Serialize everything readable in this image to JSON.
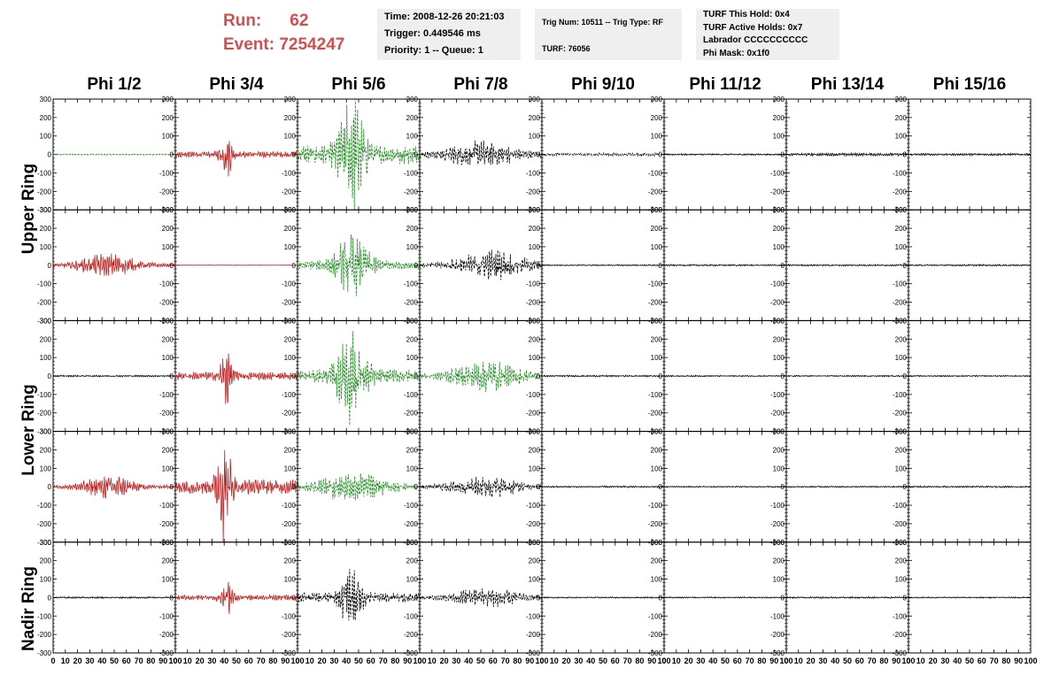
{
  "header": {
    "run_label": "Run:",
    "run_value": "62",
    "event_label": "Event:",
    "event_value": "7254247",
    "time_line": "Time: 2008-12-26 20:21:03",
    "trigger_line": "Trigger: 0.449546 ms",
    "priority_line": "Priority: 1 -- Queue: 1",
    "trig_line": "Trig Num: 10511 -- Trig Type: RF",
    "turf_line": "TURF: 76056",
    "turf_hold_line": "TURF This Hold: 0x4",
    "turf_active_line": "TURF Active Holds: 0x7",
    "labrador_line": "Labrador CCCCCCCCCC",
    "phi_mask_line": "Phi Mask: 0x1f0"
  },
  "columns": [
    "Phi 1/2",
    "Phi 3/4",
    "Phi 5/6",
    "Phi 7/8",
    "Phi 9/10",
    "Phi 11/12",
    "Phi 13/14",
    "Phi 15/16"
  ],
  "rings": [
    "Upper Ring",
    "Lower Ring",
    "Nadir Ring"
  ],
  "colors": {
    "green": "#228b22",
    "red": "#c02020",
    "black": "#000000",
    "run_text": "#d05050",
    "info_bg": "#efefef"
  },
  "chart_data": {
    "type": "line",
    "layout": "grid of 5 rows x 8 columns of waveform panels",
    "xlim": [
      0,
      100
    ],
    "ylim": [
      -300,
      300
    ],
    "x_ticks": [
      0,
      10,
      20,
      30,
      40,
      50,
      60,
      70,
      80,
      90,
      100
    ],
    "x_tick_labels": [
      "0",
      "10",
      "20",
      "30",
      "40",
      "50",
      "60",
      "70",
      "80",
      "90",
      "100"
    ],
    "y_ticks": [
      -300,
      -200,
      -100,
      0,
      100,
      200,
      300
    ],
    "y_tick_labels": [
      "-300",
      "-200",
      "-100",
      "0",
      "100",
      "200",
      "300"
    ],
    "rows": [
      {
        "cells": [
          {
            "color": "green",
            "dashed": true,
            "amp": 12,
            "center": 0,
            "width": 0
          },
          {
            "color": "red",
            "dashed": false,
            "amp": 90,
            "center": 42,
            "width": 5
          },
          {
            "color": "green",
            "dashed": true,
            "amp": 280,
            "center": 44,
            "width": 10
          },
          {
            "color": "black",
            "dashed": true,
            "amp": 55,
            "center": 50,
            "width": 30
          },
          {
            "color": "black",
            "dashed": true,
            "amp": 25,
            "center": 0,
            "width": 0
          },
          {
            "color": "black",
            "dashed": false,
            "amp": 15,
            "center": 0,
            "width": 0
          },
          {
            "color": "black",
            "dashed": false,
            "amp": 25,
            "center": 0,
            "width": 0
          },
          {
            "color": "black",
            "dashed": false,
            "amp": 20,
            "center": 0,
            "width": 0
          }
        ]
      },
      {
        "cells": [
          {
            "color": "red",
            "dashed": false,
            "amp": 45,
            "center": 45,
            "width": 25
          },
          {
            "color": "red",
            "dashed": false,
            "amp": 5,
            "center": 0,
            "width": 0
          },
          {
            "color": "green",
            "dashed": true,
            "amp": 120,
            "center": 45,
            "width": 15
          },
          {
            "color": "black",
            "dashed": true,
            "amp": 60,
            "center": 60,
            "width": 30
          },
          {
            "color": "black",
            "dashed": false,
            "amp": 12,
            "center": 0,
            "width": 0
          },
          {
            "color": "black",
            "dashed": false,
            "amp": 15,
            "center": 0,
            "width": 0
          },
          {
            "color": "black",
            "dashed": false,
            "amp": 15,
            "center": 0,
            "width": 0
          },
          {
            "color": "black",
            "dashed": false,
            "amp": 15,
            "center": 0,
            "width": 0
          }
        ]
      },
      {
        "cells": [
          {
            "color": "black",
            "dashed": false,
            "amp": 15,
            "center": 0,
            "width": 0
          },
          {
            "color": "red",
            "dashed": false,
            "amp": 120,
            "center": 42,
            "width": 5
          },
          {
            "color": "green",
            "dashed": true,
            "amp": 190,
            "center": 44,
            "width": 12
          },
          {
            "color": "green",
            "dashed": true,
            "amp": 60,
            "center": 55,
            "width": 30
          },
          {
            "color": "black",
            "dashed": false,
            "amp": 15,
            "center": 0,
            "width": 0
          },
          {
            "color": "black",
            "dashed": false,
            "amp": 12,
            "center": 0,
            "width": 0
          },
          {
            "color": "black",
            "dashed": false,
            "amp": 12,
            "center": 0,
            "width": 0
          },
          {
            "color": "black",
            "dashed": false,
            "amp": 12,
            "center": 0,
            "width": 0
          }
        ]
      },
      {
        "cells": [
          {
            "color": "red",
            "dashed": false,
            "amp": 50,
            "center": 45,
            "width": 20
          },
          {
            "color": "red",
            "dashed": false,
            "amp": 220,
            "center": 40,
            "width": 6
          },
          {
            "color": "green",
            "dashed": true,
            "amp": 60,
            "center": 45,
            "width": 30
          },
          {
            "color": "black",
            "dashed": true,
            "amp": 45,
            "center": 55,
            "width": 30
          },
          {
            "color": "black",
            "dashed": false,
            "amp": 15,
            "center": 0,
            "width": 0
          },
          {
            "color": "black",
            "dashed": false,
            "amp": 12,
            "center": 0,
            "width": 0
          },
          {
            "color": "black",
            "dashed": false,
            "amp": 12,
            "center": 0,
            "width": 0
          },
          {
            "color": "black",
            "dashed": false,
            "amp": 15,
            "center": 0,
            "width": 0
          }
        ]
      },
      {
        "cells": [
          {
            "color": "black",
            "dashed": false,
            "amp": 15,
            "center": 0,
            "width": 0
          },
          {
            "color": "red",
            "dashed": false,
            "amp": 80,
            "center": 42,
            "width": 5
          },
          {
            "color": "black",
            "dashed": true,
            "amp": 150,
            "center": 44,
            "width": 8
          },
          {
            "color": "black",
            "dashed": true,
            "amp": 40,
            "center": 55,
            "width": 30
          },
          {
            "color": "black",
            "dashed": false,
            "amp": 12,
            "center": 0,
            "width": 0
          },
          {
            "color": "black",
            "dashed": false,
            "amp": 12,
            "center": 0,
            "width": 0
          },
          {
            "color": "black",
            "dashed": false,
            "amp": 15,
            "center": 0,
            "width": 0
          },
          {
            "color": "black",
            "dashed": false,
            "amp": 12,
            "center": 0,
            "width": 0
          }
        ]
      }
    ]
  }
}
